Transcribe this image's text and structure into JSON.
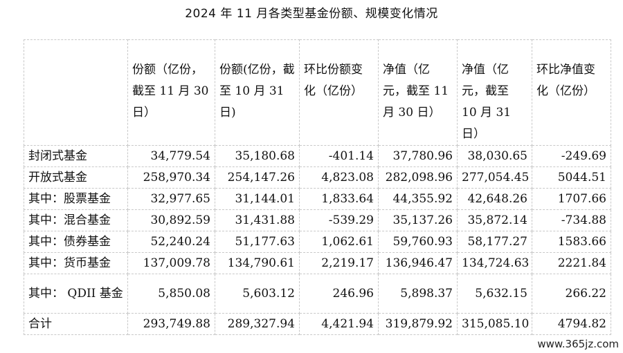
{
  "title": "2024 年 11 月各类型基金份额、规模变化情况",
  "table": {
    "headers": [
      "",
      "份额（亿份，截至 11 月 30 日）",
      "份额(亿份，截至 10 月 31 日)",
      "环比份额变化（亿份）",
      "净值（亿元，截至 11 月 30 日）",
      "净值（亿元，截至 10 月 31 日）",
      "环比净值变化（亿份）"
    ],
    "rows": [
      [
        "封闭式基金",
        "34,779.54",
        "35,180.68",
        "-401.14",
        "37,780.96",
        "38,030.65",
        "-249.69"
      ],
      [
        "开放式基金",
        "258,970.34",
        "254,147.26",
        "4,823.08",
        "282,098.96",
        "277,054.45",
        "5044.51"
      ],
      [
        "其中：股票基金",
        "32,977.65",
        "31,144.01",
        "1,833.64",
        "44,355.92",
        "42,648.26",
        "1707.66"
      ],
      [
        "其中：混合基金",
        "30,892.59",
        "31,431.88",
        "-539.29",
        "35,137.26",
        "35,872.14",
        "-734.88"
      ],
      [
        "其中：债券基金",
        "52,240.24",
        "51,177.63",
        "1,062.61",
        "59,760.93",
        "58,177.27",
        "1583.66"
      ],
      [
        "其中：货币基金",
        "137,009.78",
        "134,790.61",
        "2,219.17",
        "136,946.47",
        "134,724.63",
        "2221.84"
      ],
      [
        "其中： QDII 基金",
        "5,850.08",
        "5,603.12",
        "246.96",
        "5,898.37",
        "5,632.15",
        "266.22"
      ],
      [
        "合计",
        "293,749.88",
        "289,327.94",
        "4,421.94",
        "319,879.92",
        "315,085.10",
        "4794.82"
      ]
    ]
  },
  "watermark": "www.365jz.com"
}
